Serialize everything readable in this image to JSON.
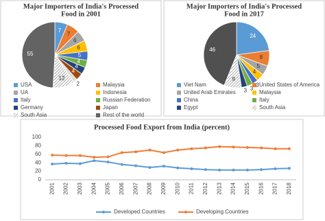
{
  "chart_data": [
    {
      "type": "pie",
      "title": [
        "Major Importers of India's Processed",
        "Food  in 2001"
      ],
      "categories": [
        "USA",
        "Malaysia",
        "UA",
        "Indonesia",
        "Italy",
        "Russian Federation",
        "Germany",
        "Japan",
        null,
        "South Asia",
        "Rest of the world"
      ],
      "values": [
        7,
        7,
        6,
        6,
        5,
        4,
        4,
        4,
        2,
        12,
        55
      ],
      "colors": [
        "#5b9bd5",
        "#ed7d31",
        "#a5a5a5",
        "#ffc000",
        "#4472c4",
        "#70ad47",
        "#264478",
        "#9e480e",
        "#d9d9d9",
        "hatch",
        "#636363"
      ]
    },
    {
      "type": "pie",
      "title": [
        "Major Importers of India's Processed",
        "Food  in 2017"
      ],
      "categories": [
        "Viet Nam",
        "United States of America",
        "United Arab Emirates",
        "Malaysia",
        "China",
        "Italy",
        "Egypt",
        "South Asia",
        null
      ],
      "values": [
        24,
        8,
        5,
        4,
        3,
        3,
        3,
        9,
        46
      ],
      "colors": [
        "#5b9bd5",
        "#ed7d31",
        "#a5a5a5",
        "#ffc000",
        "#4472c4",
        "#70ad47",
        "#264478",
        "hatch",
        "#505050"
      ]
    },
    {
      "type": "line",
      "title": "Processed Food Export from India (percent)",
      "categories": [
        "2001",
        "2002",
        "2003",
        "2004",
        "2005",
        "2006",
        "2007",
        "2008",
        "2009",
        "2010",
        "2011",
        "2012",
        "2013",
        "2014",
        "2015",
        "2016",
        "2017",
        "2018"
      ],
      "series": [
        {
          "name": "Developed Countries",
          "color": "#5b9bd5",
          "values": [
            37,
            39,
            38,
            45,
            42,
            36,
            33,
            29,
            32,
            28,
            26,
            24,
            23,
            23,
            23,
            24,
            26,
            27
          ]
        },
        {
          "name": "Developing Countries",
          "color": "#ed7d31",
          "values": [
            58,
            57,
            57,
            53,
            54,
            64,
            66,
            70,
            64,
            70,
            73,
            75,
            78,
            77,
            76,
            75,
            73,
            73
          ]
        }
      ],
      "ylim": [
        0,
        100
      ],
      "yticks": [
        0,
        20,
        40,
        60,
        80,
        100
      ],
      "grid": false
    }
  ]
}
